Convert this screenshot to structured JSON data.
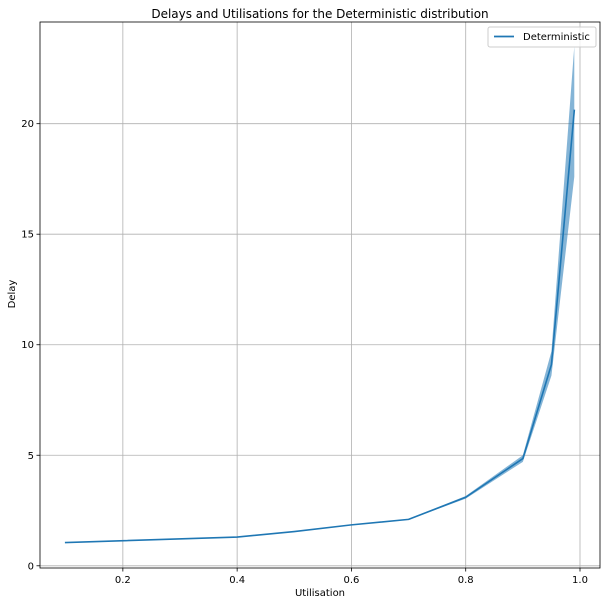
{
  "chart_data": {
    "type": "line",
    "title": "Delays and Utilisations for the Deterministic distribution",
    "xlabel": "Utilisation",
    "ylabel": "Delay",
    "xlim": [
      0.055,
      1.035
    ],
    "ylim": [
      -0.1,
      24.6
    ],
    "x_ticks": [
      0.2,
      0.4,
      0.6,
      0.8,
      1.0
    ],
    "x_tick_labels": [
      "0.2",
      "0.4",
      "0.6",
      "0.8",
      "1.0"
    ],
    "y_ticks": [
      0,
      5,
      10,
      15,
      20
    ],
    "y_tick_labels": [
      "0",
      "5",
      "10",
      "15",
      "20"
    ],
    "grid": true,
    "legend_position": "top-right",
    "series": [
      {
        "name": "Deterministic",
        "color": "#1f77b4",
        "band_color": "#1f77b4",
        "x": [
          0.1,
          0.4,
          0.5,
          0.6,
          0.7,
          0.8,
          0.9,
          0.95,
          0.99
        ],
        "y": [
          1.05,
          1.3,
          1.55,
          1.85,
          2.1,
          3.1,
          4.85,
          9.1,
          20.6
        ],
        "y_lower": [
          1.04,
          1.29,
          1.54,
          1.84,
          2.08,
          3.04,
          4.7,
          8.6,
          17.6
        ],
        "y_upper": [
          1.06,
          1.31,
          1.56,
          1.86,
          2.12,
          3.16,
          5.0,
          9.7,
          23.5
        ]
      }
    ]
  }
}
